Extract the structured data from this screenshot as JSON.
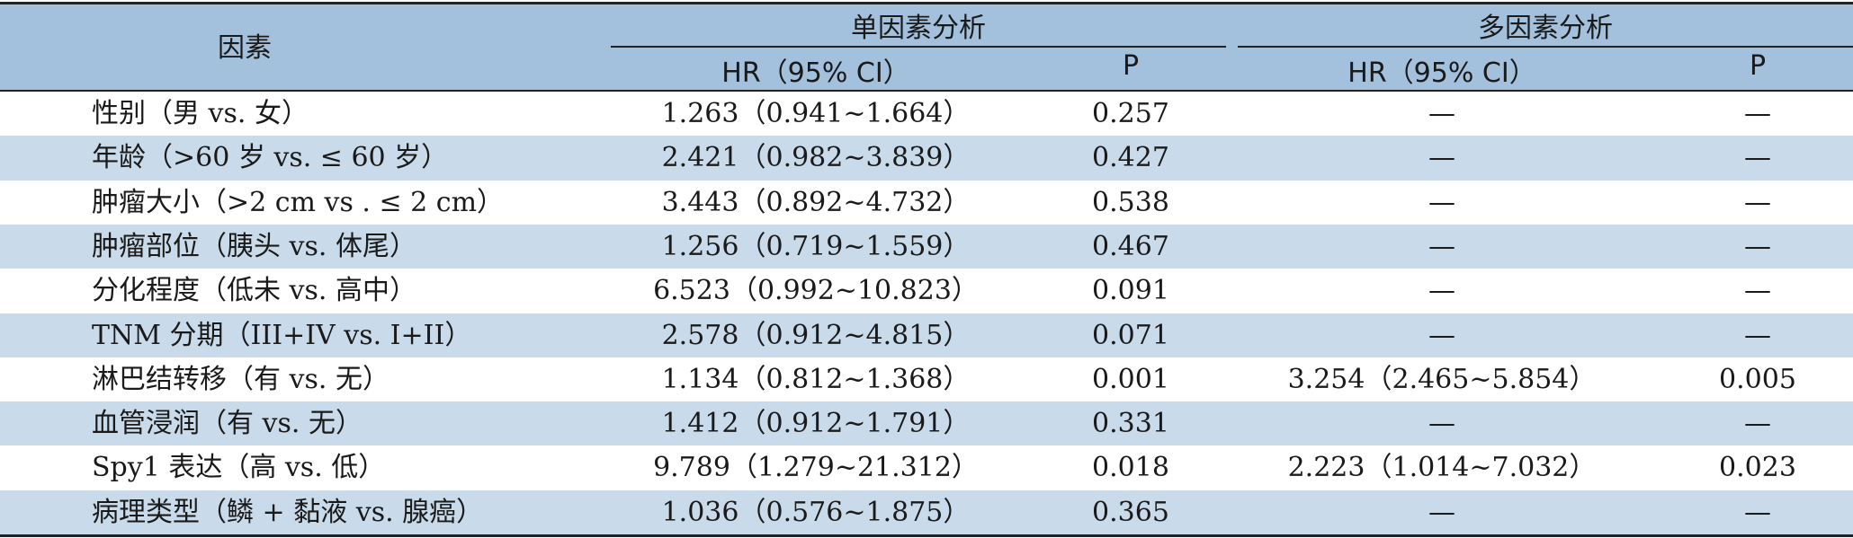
{
  "table": {
    "header": {
      "factor": "因素",
      "groups": [
        {
          "title": "单因素分析",
          "columns": [
            "HR（95% CI）",
            "P"
          ]
        },
        {
          "title": "多因素分析",
          "columns": [
            "HR（95% CI）",
            "P"
          ]
        }
      ]
    },
    "rows": [
      [
        "性别（男 vs. 女）",
        "1.263（0.941~1.664）",
        "0.257",
        "—",
        "—"
      ],
      [
        "年龄（>60 岁 vs. ≤ 60 岁）",
        "2.421（0.982~3.839）",
        "0.427",
        "—",
        "—"
      ],
      [
        "肿瘤大小（>2 cm vs . ≤ 2 cm）",
        "3.443（0.892~4.732）",
        "0.538",
        "—",
        "—"
      ],
      [
        "肿瘤部位（胰头 vs. 体尾）",
        "1.256（0.719~1.559）",
        "0.467",
        "—",
        "—"
      ],
      [
        "分化程度（低未 vs. 高中）",
        "6.523（0.992~10.823）",
        "0.091",
        "—",
        "—"
      ],
      [
        "TNM 分期（III+IV vs. I+II）",
        "2.578（0.912~4.815）",
        "0.071",
        "—",
        "—"
      ],
      [
        "淋巴结转移（有 vs. 无）",
        "1.134（0.812~1.368）",
        "0.001",
        "3.254（2.465~5.854）",
        "0.005"
      ],
      [
        "血管浸润（有 vs. 无）",
        "1.412（0.912~1.791）",
        "0.331",
        "—",
        "—"
      ],
      [
        "Spy1 表达（高 vs. 低）",
        "9.789（1.279~21.312）",
        "0.018",
        "2.223（1.014~7.032）",
        "0.023"
      ],
      [
        "病理类型（鳞 + 黏液 vs. 腺癌）",
        "1.036（0.576~1.875）",
        "0.365",
        "—",
        "—"
      ]
    ]
  }
}
